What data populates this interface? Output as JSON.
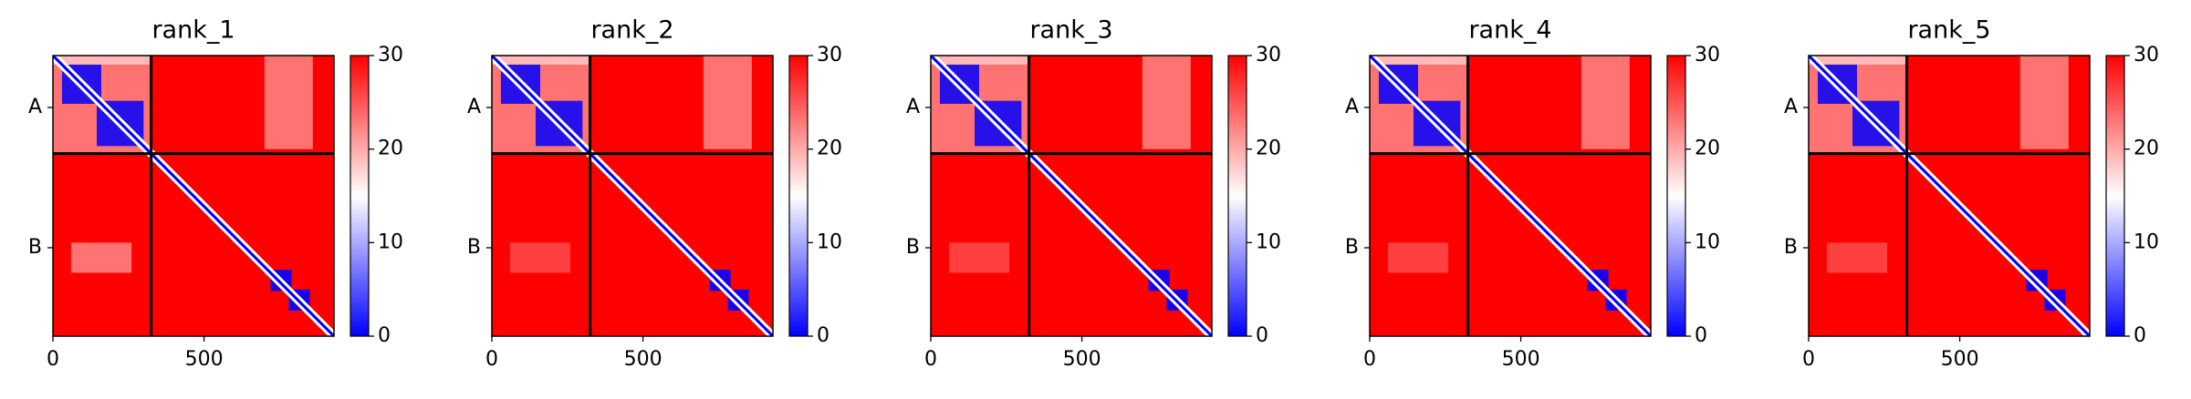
{
  "chart_data": [
    {
      "type": "heatmap",
      "title": "rank_1",
      "xlim": [
        0,
        930
      ],
      "ylim": [
        0,
        930
      ],
      "xticks": [
        0,
        500
      ],
      "yticks": [
        {
          "value": 172,
          "label": "A"
        },
        {
          "value": 637,
          "label": "B"
        }
      ],
      "chain_breaks": [
        325
      ],
      "clim": [
        0,
        30
      ],
      "cticks": [
        0,
        10,
        20,
        30
      ],
      "colormap": [
        "#0000ff",
        "#ffffff",
        "#ff0000"
      ]
    },
    {
      "type": "heatmap",
      "title": "rank_2",
      "xlim": [
        0,
        930
      ],
      "ylim": [
        0,
        930
      ],
      "xticks": [
        0,
        500
      ],
      "yticks": [
        {
          "value": 172,
          "label": "A"
        },
        {
          "value": 637,
          "label": "B"
        }
      ],
      "chain_breaks": [
        325
      ],
      "clim": [
        0,
        30
      ],
      "cticks": [
        0,
        10,
        20,
        30
      ],
      "colormap": [
        "#0000ff",
        "#ffffff",
        "#ff0000"
      ]
    },
    {
      "type": "heatmap",
      "title": "rank_3",
      "xlim": [
        0,
        930
      ],
      "ylim": [
        0,
        930
      ],
      "xticks": [
        0,
        500
      ],
      "yticks": [
        {
          "value": 172,
          "label": "A"
        },
        {
          "value": 637,
          "label": "B"
        }
      ],
      "chain_breaks": [
        325
      ],
      "clim": [
        0,
        30
      ],
      "cticks": [
        0,
        10,
        20,
        30
      ],
      "colormap": [
        "#0000ff",
        "#ffffff",
        "#ff0000"
      ]
    },
    {
      "type": "heatmap",
      "title": "rank_4",
      "xlim": [
        0,
        930
      ],
      "ylim": [
        0,
        930
      ],
      "xticks": [
        0,
        500
      ],
      "yticks": [
        {
          "value": 172,
          "label": "A"
        },
        {
          "value": 637,
          "label": "B"
        }
      ],
      "chain_breaks": [
        325
      ],
      "clim": [
        0,
        30
      ],
      "cticks": [
        0,
        10,
        20,
        30
      ],
      "colormap": [
        "#0000ff",
        "#ffffff",
        "#ff0000"
      ]
    },
    {
      "type": "heatmap",
      "title": "rank_5",
      "xlim": [
        0,
        930
      ],
      "ylim": [
        0,
        930
      ],
      "xticks": [
        0,
        500
      ],
      "yticks": [
        {
          "value": 172,
          "label": "A"
        },
        {
          "value": 637,
          "label": "B"
        }
      ],
      "chain_breaks": [
        325
      ],
      "clim": [
        0,
        30
      ],
      "cticks": [
        0,
        10,
        20,
        30
      ],
      "colormap": [
        "#0000ff",
        "#ffffff",
        "#ff0000"
      ]
    }
  ]
}
